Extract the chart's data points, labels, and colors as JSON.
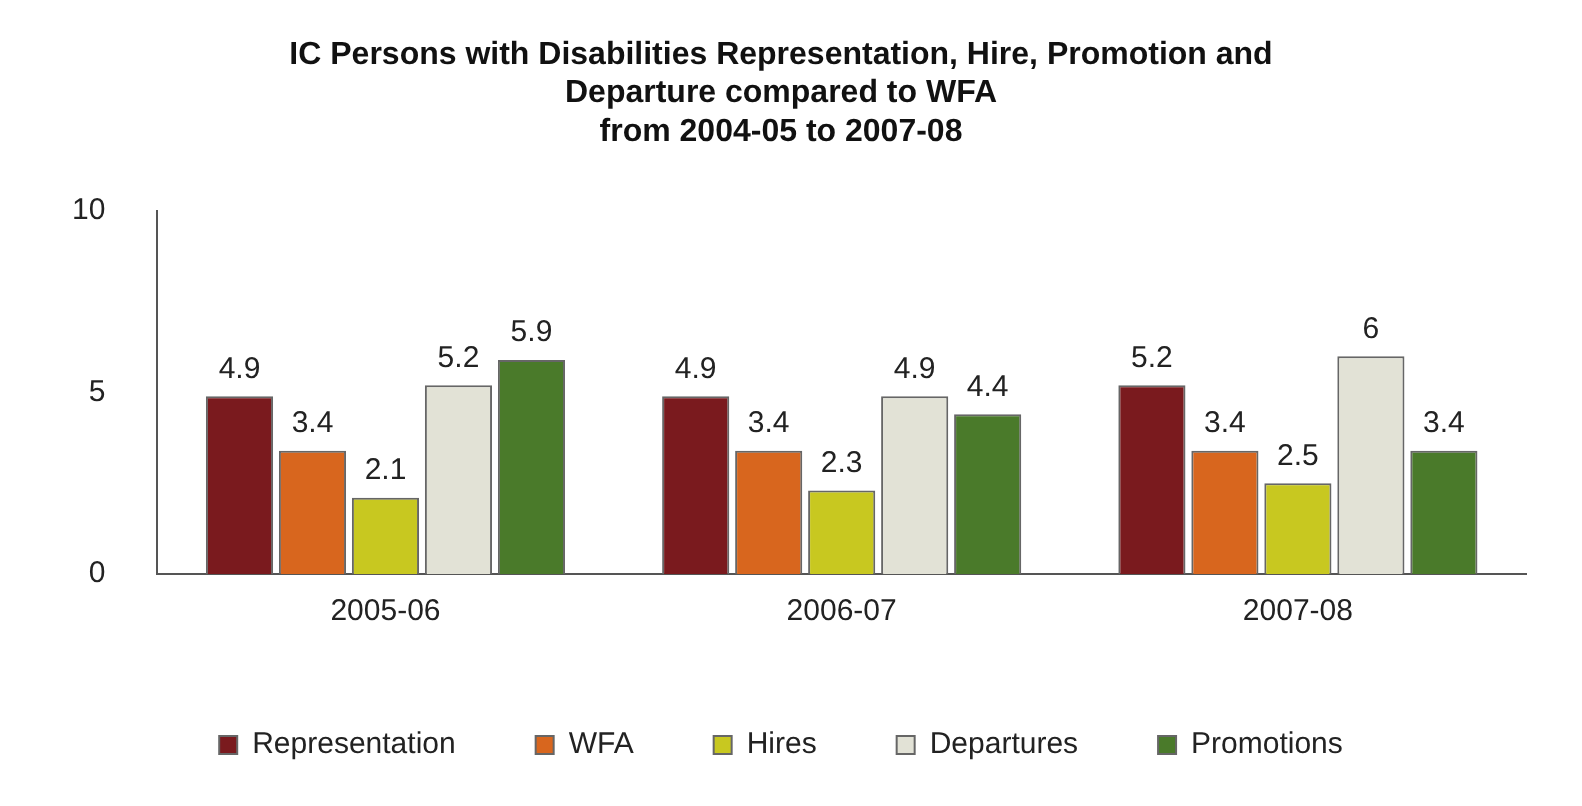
{
  "chart_data": {
    "type": "bar",
    "title": "IC Persons with Disabilities Representation, Hire, Promotion and\nDeparture compared to WFA\nfrom 2004-05 to 2007-08",
    "categories": [
      "2005-06",
      "2006-07",
      "2007-08"
    ],
    "series": [
      {
        "name": "Representation",
        "color": "#7a1a1e",
        "values": [
          4.9,
          4.9,
          5.2
        ]
      },
      {
        "name": "WFA",
        "color": "#d8661e",
        "values": [
          3.4,
          3.4,
          3.4
        ]
      },
      {
        "name": "Hires",
        "color": "#c8c820",
        "values": [
          2.1,
          2.3,
          2.5
        ]
      },
      {
        "name": "Departures",
        "color": "#e2e2d6",
        "values": [
          5.2,
          4.9,
          6
        ]
      },
      {
        "name": "Promotions",
        "color": "#4a7a2a",
        "values": [
          5.9,
          4.4,
          3.4
        ]
      }
    ],
    "ylim": [
      0,
      10
    ],
    "yticks": [
      0,
      5,
      10
    ],
    "grid": false,
    "legend": "bottom",
    "data_labels": true
  }
}
